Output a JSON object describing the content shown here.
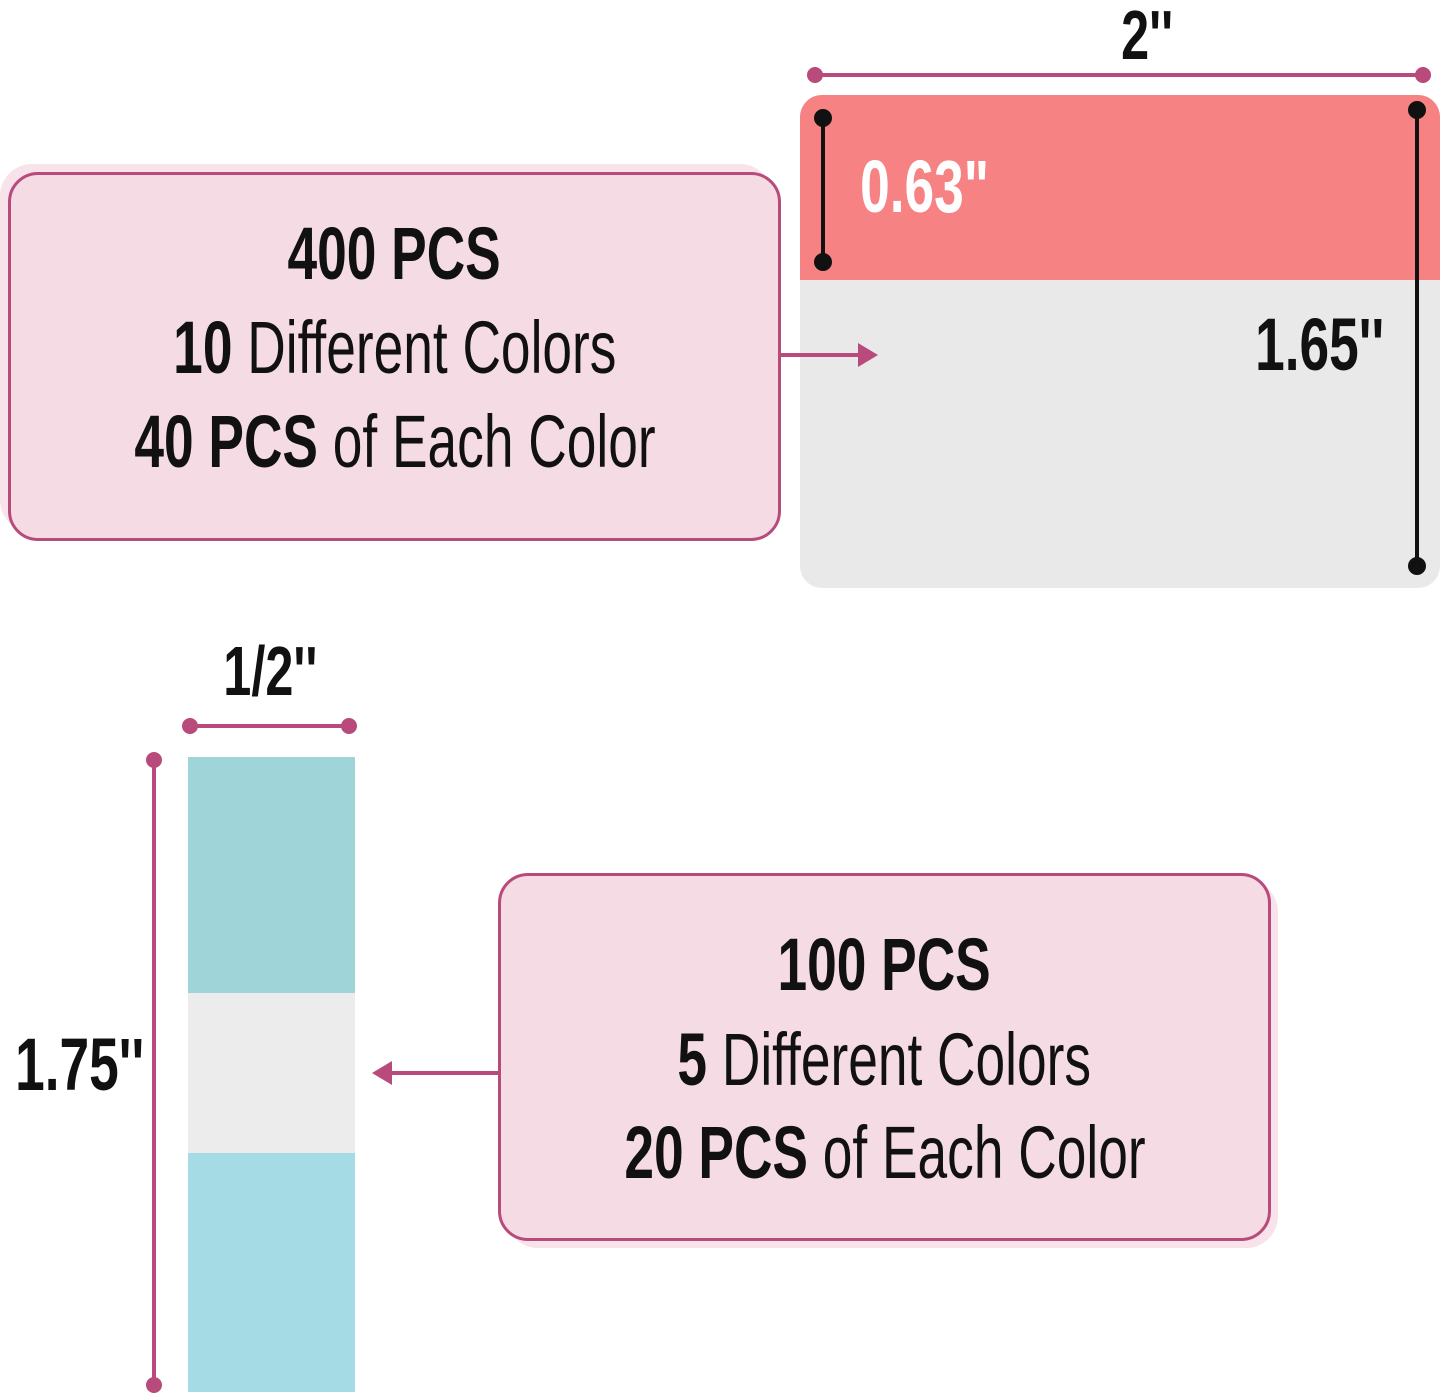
{
  "large_tab": {
    "width_label": "2''",
    "tab_height_label": "0.63\"",
    "height_label": "1.65''",
    "callout": {
      "line1": "400 PCS",
      "line2_bold": "10",
      "line2_rest": " Different Colors",
      "line3_bold": "40 PCS",
      "line3_rest": " of Each Color"
    },
    "colors": {
      "tab": "#f68284",
      "body": "#e9e9e9"
    }
  },
  "small_tab": {
    "width_label": "1/2''",
    "height_label": "1.75''",
    "callout": {
      "line1": "100 PCS",
      "line2_bold": "5",
      "line2_rest": " Different Colors",
      "line3_bold": "20 PCS",
      "line3_rest": " of Each Color"
    },
    "colors": {
      "top": "#9fd4d8",
      "middle": "#ececec",
      "bottom": "#a4dbe4"
    }
  },
  "accent_color": "#b84a7c"
}
